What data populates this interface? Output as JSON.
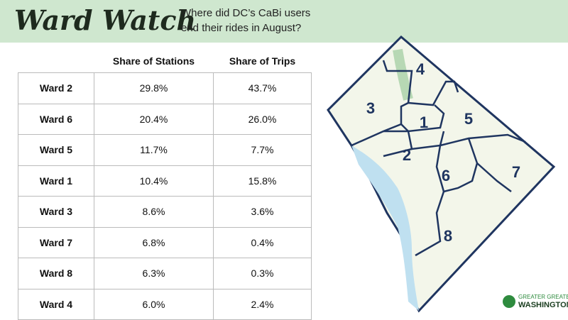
{
  "header": {
    "title": "Ward Watch",
    "subtitle": "Where did DC’s CaBi users end their rides in August?"
  },
  "table": {
    "columns": [
      "",
      "Share of Stations",
      "Share of Trips"
    ],
    "rows": [
      [
        "Ward 2",
        "29.8%",
        "43.7%"
      ],
      [
        "Ward 6",
        "20.4%",
        "26.0%"
      ],
      [
        "Ward 5",
        "11.7%",
        "7.7%"
      ],
      [
        "Ward 1",
        "10.4%",
        "15.8%"
      ],
      [
        "Ward 3",
        "8.6%",
        "3.6%"
      ],
      [
        "Ward 7",
        "6.8%",
        "0.4%"
      ],
      [
        "Ward 8",
        "6.3%",
        "0.3%"
      ],
      [
        "Ward 4",
        "6.0%",
        "2.4%"
      ]
    ]
  },
  "map": {
    "labels": [
      "4",
      "3",
      "1",
      "5",
      "2",
      "6",
      "7",
      "8"
    ]
  },
  "logo": {
    "line1": "GREATER GREATER",
    "line2": "WASHINGTON"
  }
}
